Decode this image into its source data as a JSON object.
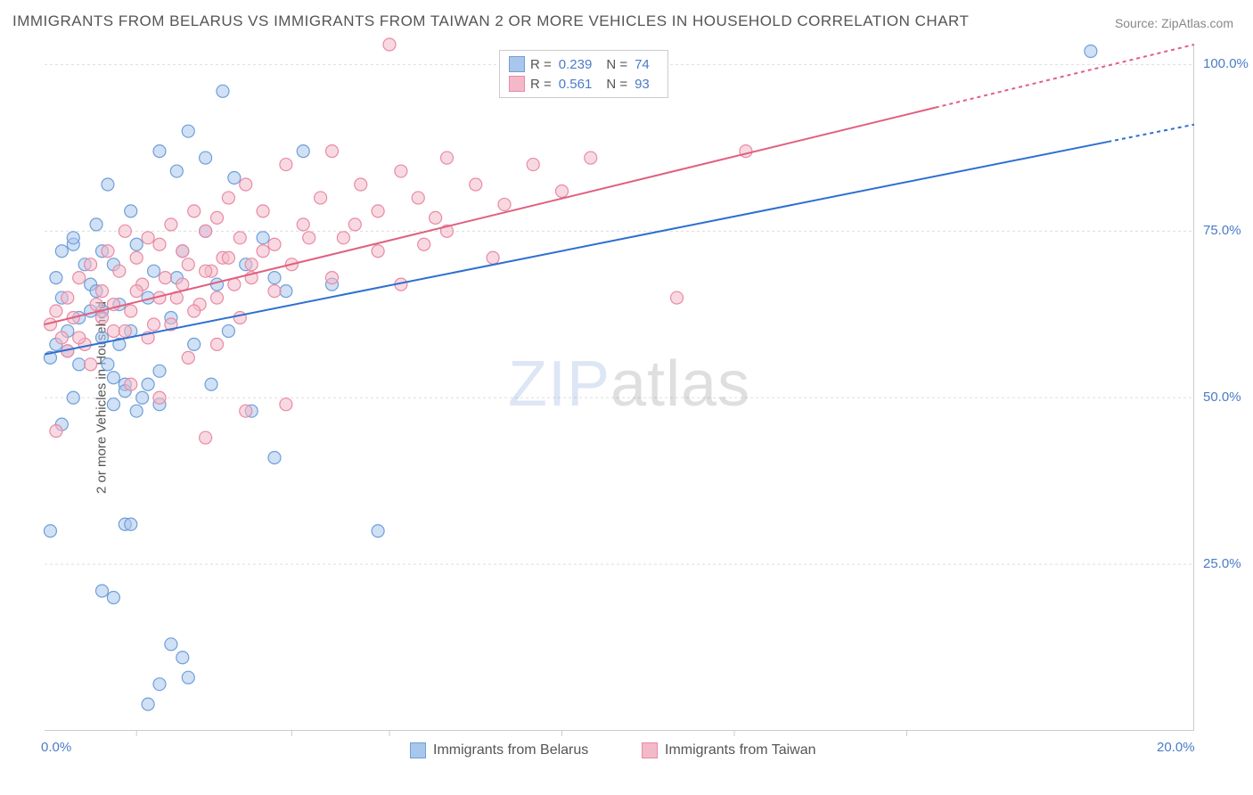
{
  "title": "IMMIGRANTS FROM BELARUS VS IMMIGRANTS FROM TAIWAN 2 OR MORE VEHICLES IN HOUSEHOLD CORRELATION CHART",
  "source": "Source: ZipAtlas.com",
  "ylabel": "2 or more Vehicles in Household",
  "watermark_a": "ZIP",
  "watermark_b": "atlas",
  "chart": {
    "type": "scatter-with-regression",
    "xlim": [
      0,
      20
    ],
    "ylim": [
      0,
      103
    ],
    "x_ticks": [
      0,
      20
    ],
    "x_tick_labels": [
      "0.0%",
      "20.0%"
    ],
    "x_minor_ticks": [
      1.6,
      4.3,
      6.0,
      9.0,
      12.0,
      15.0
    ],
    "y_ticks": [
      25,
      50,
      75,
      100
    ],
    "y_tick_labels": [
      "25.0%",
      "50.0%",
      "75.0%",
      "100.0%"
    ],
    "grid_color": "#dddddd",
    "background_color": "#ffffff",
    "series": [
      {
        "name": "Immigrants from Belarus",
        "color_fill": "#a9c6ec",
        "color_stroke": "#6f9fd8",
        "marker_radius": 7,
        "line_color": "#2e6fd0",
        "line_width": 2,
        "dash_after_x": 18.5,
        "R": "0.239",
        "N": "74",
        "regression": {
          "x1": 0,
          "y1": 56.5,
          "x2": 20,
          "y2": 91
        },
        "points": [
          [
            0.1,
            56
          ],
          [
            0.2,
            58
          ],
          [
            0.3,
            72
          ],
          [
            0.3,
            65
          ],
          [
            0.1,
            30
          ],
          [
            0.2,
            68
          ],
          [
            0.5,
            73
          ],
          [
            0.4,
            60
          ],
          [
            0.6,
            55
          ],
          [
            0.5,
            74
          ],
          [
            0.7,
            70
          ],
          [
            0.8,
            63
          ],
          [
            0.8,
            67
          ],
          [
            0.9,
            76
          ],
          [
            1.0,
            59
          ],
          [
            1.0,
            72
          ],
          [
            1.1,
            82
          ],
          [
            1.2,
            53
          ],
          [
            1.2,
            70
          ],
          [
            1.3,
            64
          ],
          [
            1.4,
            52
          ],
          [
            1.5,
            78
          ],
          [
            1.5,
            60
          ],
          [
            1.6,
            73
          ],
          [
            1.7,
            50
          ],
          [
            1.8,
            65
          ],
          [
            1.9,
            69
          ],
          [
            2.0,
            54
          ],
          [
            2.0,
            87
          ],
          [
            2.2,
            62
          ],
          [
            2.3,
            68
          ],
          [
            2.4,
            72
          ],
          [
            2.5,
            90
          ],
          [
            2.6,
            58
          ],
          [
            2.8,
            75
          ],
          [
            2.9,
            52
          ],
          [
            3.0,
            67
          ],
          [
            3.1,
            96
          ],
          [
            3.2,
            60
          ],
          [
            3.3,
            83
          ],
          [
            3.5,
            70
          ],
          [
            3.6,
            48
          ],
          [
            3.8,
            74
          ],
          [
            4.0,
            41
          ],
          [
            4.2,
            66
          ],
          [
            4.5,
            87
          ],
          [
            0.3,
            46
          ],
          [
            0.5,
            50
          ],
          [
            1.0,
            21
          ],
          [
            1.2,
            20
          ],
          [
            1.4,
            31
          ],
          [
            1.5,
            31
          ],
          [
            1.8,
            4
          ],
          [
            2.0,
            7
          ],
          [
            2.2,
            13
          ],
          [
            2.4,
            11
          ],
          [
            2.5,
            8
          ],
          [
            1.2,
            49
          ],
          [
            1.4,
            51
          ],
          [
            1.6,
            48
          ],
          [
            1.8,
            52
          ],
          [
            2.0,
            49
          ],
          [
            4.0,
            68
          ],
          [
            5.0,
            67
          ],
          [
            5.8,
            30
          ],
          [
            18.2,
            102
          ],
          [
            2.8,
            86
          ],
          [
            2.3,
            84
          ],
          [
            1.0,
            63
          ],
          [
            0.4,
            57
          ],
          [
            0.6,
            62
          ],
          [
            0.9,
            66
          ],
          [
            1.1,
            55
          ],
          [
            1.3,
            58
          ]
        ]
      },
      {
        "name": "Immigrants from Taiwan",
        "color_fill": "#f4b9c8",
        "color_stroke": "#e88aa5",
        "marker_radius": 7,
        "line_color": "#e0607f",
        "line_width": 2,
        "dash_after_x": 15.5,
        "R": "0.561",
        "N": "93",
        "regression": {
          "x1": 0,
          "y1": 61,
          "x2": 20,
          "y2": 103
        },
        "points": [
          [
            0.1,
            61
          ],
          [
            0.2,
            63
          ],
          [
            0.3,
            59
          ],
          [
            0.4,
            65
          ],
          [
            0.5,
            62
          ],
          [
            0.6,
            68
          ],
          [
            0.7,
            58
          ],
          [
            0.8,
            70
          ],
          [
            0.9,
            64
          ],
          [
            1.0,
            66
          ],
          [
            1.1,
            72
          ],
          [
            1.2,
            60
          ],
          [
            1.3,
            69
          ],
          [
            1.4,
            75
          ],
          [
            1.5,
            63
          ],
          [
            1.6,
            71
          ],
          [
            1.7,
            67
          ],
          [
            1.8,
            74
          ],
          [
            1.9,
            61
          ],
          [
            2.0,
            73
          ],
          [
            2.1,
            68
          ],
          [
            2.2,
            76
          ],
          [
            2.3,
            65
          ],
          [
            2.4,
            72
          ],
          [
            2.5,
            70
          ],
          [
            2.6,
            78
          ],
          [
            2.7,
            64
          ],
          [
            2.8,
            75
          ],
          [
            2.9,
            69
          ],
          [
            3.0,
            77
          ],
          [
            3.1,
            71
          ],
          [
            3.2,
            80
          ],
          [
            3.3,
            67
          ],
          [
            3.4,
            74
          ],
          [
            3.5,
            82
          ],
          [
            3.6,
            70
          ],
          [
            3.8,
            78
          ],
          [
            4.0,
            73
          ],
          [
            4.2,
            85
          ],
          [
            4.5,
            76
          ],
          [
            4.8,
            80
          ],
          [
            5.0,
            87
          ],
          [
            5.2,
            74
          ],
          [
            5.5,
            82
          ],
          [
            5.8,
            78
          ],
          [
            6.0,
            103
          ],
          [
            6.2,
            84
          ],
          [
            6.5,
            80
          ],
          [
            6.8,
            77
          ],
          [
            7.0,
            86
          ],
          [
            7.5,
            82
          ],
          [
            8.0,
            79
          ],
          [
            8.5,
            85
          ],
          [
            9.0,
            81
          ],
          [
            9.5,
            86
          ],
          [
            11.0,
            65
          ],
          [
            12.2,
            87
          ],
          [
            0.2,
            45
          ],
          [
            0.8,
            55
          ],
          [
            1.5,
            52
          ],
          [
            2.0,
            50
          ],
          [
            2.5,
            56
          ],
          [
            2.8,
            44
          ],
          [
            3.0,
            58
          ],
          [
            3.5,
            48
          ],
          [
            4.2,
            49
          ],
          [
            0.4,
            57
          ],
          [
            0.6,
            59
          ],
          [
            1.0,
            62
          ],
          [
            1.2,
            64
          ],
          [
            1.4,
            60
          ],
          [
            1.6,
            66
          ],
          [
            1.8,
            59
          ],
          [
            2.0,
            65
          ],
          [
            2.2,
            61
          ],
          [
            2.4,
            67
          ],
          [
            2.6,
            63
          ],
          [
            2.8,
            69
          ],
          [
            3.0,
            65
          ],
          [
            3.2,
            71
          ],
          [
            3.4,
            62
          ],
          [
            3.6,
            68
          ],
          [
            3.8,
            72
          ],
          [
            4.0,
            66
          ],
          [
            4.3,
            70
          ],
          [
            4.6,
            74
          ],
          [
            5.0,
            68
          ],
          [
            5.4,
            76
          ],
          [
            5.8,
            72
          ],
          [
            6.2,
            67
          ],
          [
            6.6,
            73
          ],
          [
            7.0,
            75
          ],
          [
            7.8,
            71
          ]
        ]
      }
    ]
  },
  "stats_legend": {
    "label_R": "R =",
    "label_N": "N ="
  },
  "bottom_legend": [
    {
      "label": "Immigrants from Belarus",
      "fill": "#a9c6ec",
      "stroke": "#6f9fd8"
    },
    {
      "label": "Immigrants from Taiwan",
      "fill": "#f4b9c8",
      "stroke": "#e88aa5"
    }
  ]
}
